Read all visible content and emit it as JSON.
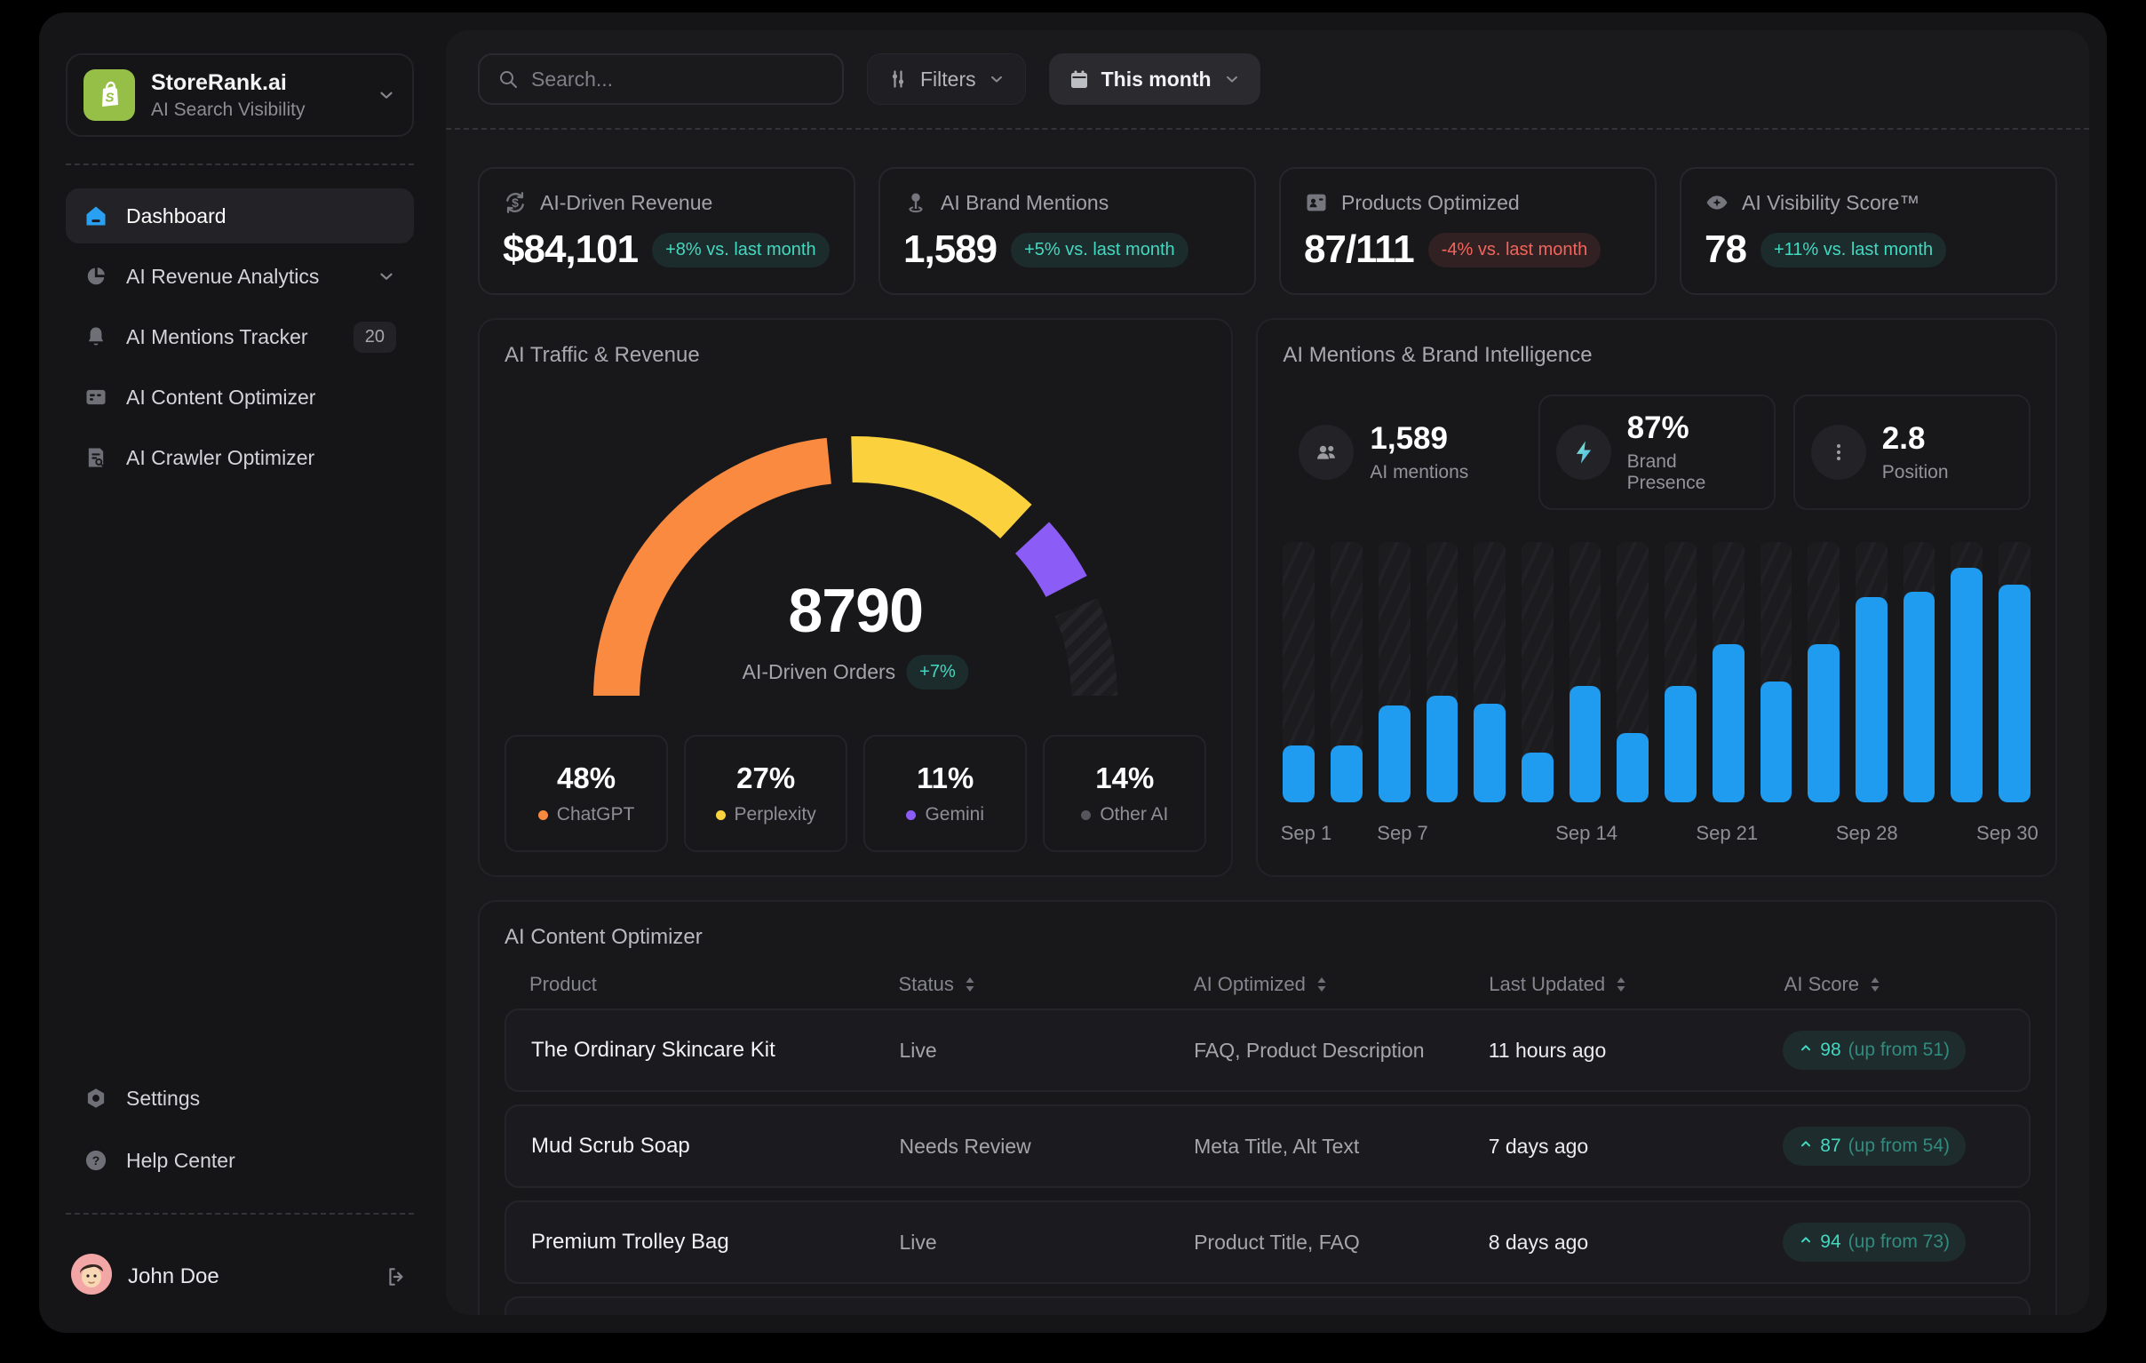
{
  "sidebar": {
    "logo": {
      "title": "StoreRank.ai",
      "subtitle": "AI Search Visibility"
    },
    "nav": [
      {
        "label": "Dashboard",
        "icon": "home-icon",
        "active": true
      },
      {
        "label": "AI Revenue Analytics",
        "icon": "pie-chart-icon",
        "chevron": true
      },
      {
        "label": "AI Mentions Tracker",
        "icon": "bell-icon",
        "badge": "20"
      },
      {
        "label": "AI Content Optimizer",
        "icon": "content-card-icon"
      },
      {
        "label": "AI Crawler Optimizer",
        "icon": "doc-search-icon"
      }
    ],
    "footer_nav": [
      {
        "label": "Settings",
        "icon": "gear-icon"
      },
      {
        "label": "Help Center",
        "icon": "help-icon"
      }
    ],
    "user": {
      "name": "John Doe"
    }
  },
  "header": {
    "search_placeholder": "Search...",
    "filters_label": "Filters",
    "period_label": "This month"
  },
  "kpis": [
    {
      "label": "AI-Driven Revenue",
      "value": "$84,101",
      "delta": "+8% vs. last month",
      "trend": "up",
      "icon": "revenue-cycle-icon"
    },
    {
      "label": "AI Brand Mentions",
      "value": "1,589",
      "delta": "+5% vs. last month",
      "trend": "up",
      "icon": "location-pin-icon"
    },
    {
      "label": "Products Optimized",
      "value": "87/111",
      "delta": "-4% vs. last month",
      "trend": "down",
      "icon": "id-card-icon"
    },
    {
      "label": "AI Visibility Score™",
      "value": "78",
      "delta": "+11% vs. last month",
      "trend": "up",
      "icon": "eye-star-icon"
    }
  ],
  "traffic_card": {
    "title": "AI Traffic & Revenue",
    "center_value": "8790",
    "center_label": "AI-Driven Orders",
    "center_delta": "+7%"
  },
  "mentions_card": {
    "title": "AI Mentions & Brand Intelligence",
    "stats": [
      {
        "value": "1,589",
        "label": "AI mentions",
        "icon": "people-icon"
      },
      {
        "value": "87%",
        "label": "Brand Presence",
        "icon": "bolt-icon"
      },
      {
        "value": "2.8",
        "label": "Position",
        "icon": "dots-icon"
      }
    ]
  },
  "chart_data": [
    {
      "type": "pie",
      "variant": "semicircle-gauge",
      "title": "AI Traffic & Revenue",
      "center_value": 8790,
      "center_label": "AI-Driven Orders",
      "center_delta_pct": 7,
      "slices": [
        {
          "label": "ChatGPT",
          "percent": 48,
          "color": "#f98a3f"
        },
        {
          "label": "Perplexity",
          "percent": 27,
          "color": "#fbd23e"
        },
        {
          "label": "Gemini",
          "percent": 11,
          "color": "#8b5cf6"
        },
        {
          "label": "Other AI",
          "percent": 14,
          "color": "hatched",
          "dot_color": "#55555b"
        }
      ]
    },
    {
      "type": "bar",
      "title": "AI Mentions & Brand Intelligence (daily mentions, September)",
      "bar_color": "#1f9bf0",
      "grid": false,
      "x_tick_labels": [
        "Sep 1",
        "Sep 7",
        "Sep 14",
        "Sep 21",
        "Sep 28",
        "Sep 30"
      ],
      "x_tick_positions_pct": [
        3.1,
        16,
        40.6,
        59.4,
        78.1,
        96.9
      ],
      "values_pct_of_max": [
        23,
        23,
        39,
        43,
        40,
        20,
        47,
        28,
        47,
        64,
        49,
        64,
        83,
        85,
        95,
        88
      ],
      "note": "no y-axis labels shown; values are relative bar heights as % of tallest bar"
    }
  ],
  "table": {
    "title": "AI Content Optimizer",
    "columns": [
      {
        "label": "Product",
        "sortable": false
      },
      {
        "label": "Status",
        "sortable": true
      },
      {
        "label": "AI Optimized",
        "sortable": true
      },
      {
        "label": "Last Updated",
        "sortable": true
      },
      {
        "label": "AI Score",
        "sortable": true
      }
    ],
    "rows": [
      {
        "product": "The Ordinary Skincare Kit",
        "status": "Live",
        "optimized": "FAQ,  Product Description",
        "updated": "11 hours ago",
        "score": "98",
        "score_note": "(up from 51)"
      },
      {
        "product": "Mud Scrub Soap",
        "status": "Needs Review",
        "optimized": "Meta Title, Alt Text",
        "updated": "7 days ago",
        "score": "87",
        "score_note": "(up from 54)"
      },
      {
        "product": "Premium Trolley Bag",
        "status": "Live",
        "optimized": "Product Title, FAQ",
        "updated": "8 days ago",
        "score": "94",
        "score_note": "(up from 73)"
      }
    ]
  },
  "colors": {
    "accent_blue": "#1f9bf0",
    "accent_teal": "#43d9c1",
    "negative_red": "#f2655c",
    "gauge_orange": "#f98a3f",
    "gauge_yellow": "#fbd23e",
    "gauge_purple": "#8b5cf6",
    "logo_green": "#95bf47"
  }
}
